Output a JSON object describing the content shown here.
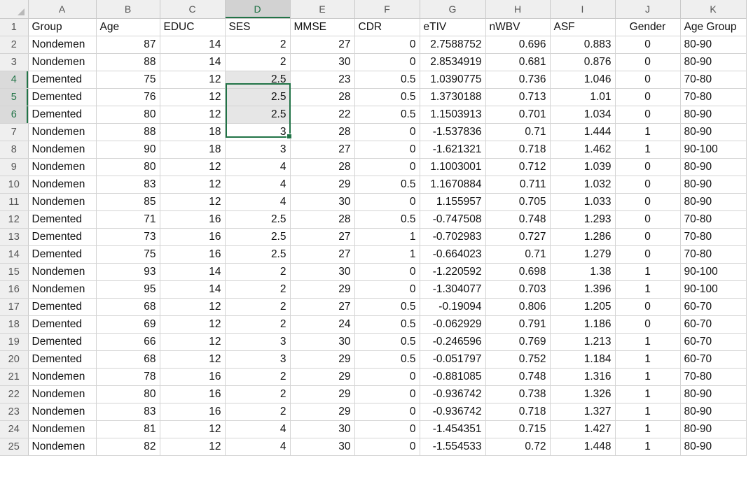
{
  "columns": [
    "A",
    "B",
    "C",
    "D",
    "E",
    "F",
    "G",
    "H",
    "I",
    "J",
    "K"
  ],
  "selected_column": "D",
  "selected_rows": [
    4,
    5,
    6
  ],
  "rows": [
    {
      "n": "1",
      "c": [
        "Group",
        "Age",
        "EDUC",
        "SES",
        "MMSE",
        "CDR",
        "eTIV",
        "nWBV",
        "ASF",
        "Gender",
        "Age Group"
      ]
    },
    {
      "n": "2",
      "c": [
        "Nondemen",
        "87",
        "14",
        "2",
        "27",
        "0",
        "2.7588752",
        "0.696",
        "0.883",
        "0",
        "80-90"
      ]
    },
    {
      "n": "3",
      "c": [
        "Nondemen",
        "88",
        "14",
        "2",
        "30",
        "0",
        "2.8534919",
        "0.681",
        "0.876",
        "0",
        "80-90"
      ]
    },
    {
      "n": "4",
      "c": [
        "Demented",
        "75",
        "12",
        "2.5",
        "23",
        "0.5",
        "1.0390775",
        "0.736",
        "1.046",
        "0",
        "70-80"
      ]
    },
    {
      "n": "5",
      "c": [
        "Demented",
        "76",
        "12",
        "2.5",
        "28",
        "0.5",
        "1.3730188",
        "0.713",
        "1.01",
        "0",
        "70-80"
      ]
    },
    {
      "n": "6",
      "c": [
        "Demented",
        "80",
        "12",
        "2.5",
        "22",
        "0.5",
        "1.1503913",
        "0.701",
        "1.034",
        "0",
        "80-90"
      ]
    },
    {
      "n": "7",
      "c": [
        "Nondemen",
        "88",
        "18",
        "3",
        "28",
        "0",
        "-1.537836",
        "0.71",
        "1.444",
        "1",
        "80-90"
      ]
    },
    {
      "n": "8",
      "c": [
        "Nondemen",
        "90",
        "18",
        "3",
        "27",
        "0",
        "-1.621321",
        "0.718",
        "1.462",
        "1",
        "90-100"
      ]
    },
    {
      "n": "9",
      "c": [
        "Nondemen",
        "80",
        "12",
        "4",
        "28",
        "0",
        "1.1003001",
        "0.712",
        "1.039",
        "0",
        "80-90"
      ]
    },
    {
      "n": "10",
      "c": [
        "Nondemen",
        "83",
        "12",
        "4",
        "29",
        "0.5",
        "1.1670884",
        "0.711",
        "1.032",
        "0",
        "80-90"
      ]
    },
    {
      "n": "11",
      "c": [
        "Nondemen",
        "85",
        "12",
        "4",
        "30",
        "0",
        "1.155957",
        "0.705",
        "1.033",
        "0",
        "80-90"
      ]
    },
    {
      "n": "12",
      "c": [
        "Demented",
        "71",
        "16",
        "2.5",
        "28",
        "0.5",
        "-0.747508",
        "0.748",
        "1.293",
        "0",
        "70-80"
      ]
    },
    {
      "n": "13",
      "c": [
        "Demented",
        "73",
        "16",
        "2.5",
        "27",
        "1",
        "-0.702983",
        "0.727",
        "1.286",
        "0",
        "70-80"
      ]
    },
    {
      "n": "14",
      "c": [
        "Demented",
        "75",
        "16",
        "2.5",
        "27",
        "1",
        "-0.664023",
        "0.71",
        "1.279",
        "0",
        "70-80"
      ]
    },
    {
      "n": "15",
      "c": [
        "Nondemen",
        "93",
        "14",
        "2",
        "30",
        "0",
        "-1.220592",
        "0.698",
        "1.38",
        "1",
        "90-100"
      ]
    },
    {
      "n": "16",
      "c": [
        "Nondemen",
        "95",
        "14",
        "2",
        "29",
        "0",
        "-1.304077",
        "0.703",
        "1.396",
        "1",
        "90-100"
      ]
    },
    {
      "n": "17",
      "c": [
        "Demented",
        "68",
        "12",
        "2",
        "27",
        "0.5",
        "-0.19094",
        "0.806",
        "1.205",
        "0",
        "60-70"
      ]
    },
    {
      "n": "18",
      "c": [
        "Demented",
        "69",
        "12",
        "2",
        "24",
        "0.5",
        "-0.062929",
        "0.791",
        "1.186",
        "0",
        "60-70"
      ]
    },
    {
      "n": "19",
      "c": [
        "Demented",
        "66",
        "12",
        "3",
        "30",
        "0.5",
        "-0.246596",
        "0.769",
        "1.213",
        "1",
        "60-70"
      ]
    },
    {
      "n": "20",
      "c": [
        "Demented",
        "68",
        "12",
        "3",
        "29",
        "0.5",
        "-0.051797",
        "0.752",
        "1.184",
        "1",
        "60-70"
      ]
    },
    {
      "n": "21",
      "c": [
        "Nondemen",
        "78",
        "16",
        "2",
        "29",
        "0",
        "-0.881085",
        "0.748",
        "1.316",
        "1",
        "70-80"
      ]
    },
    {
      "n": "22",
      "c": [
        "Nondemen",
        "80",
        "16",
        "2",
        "29",
        "0",
        "-0.936742",
        "0.738",
        "1.326",
        "1",
        "80-90"
      ]
    },
    {
      "n": "23",
      "c": [
        "Nondemen",
        "83",
        "16",
        "2",
        "29",
        "0",
        "-0.936742",
        "0.718",
        "1.327",
        "1",
        "80-90"
      ]
    },
    {
      "n": "24",
      "c": [
        "Nondemen",
        "81",
        "12",
        "4",
        "30",
        "0",
        "-1.454351",
        "0.715",
        "1.427",
        "1",
        "80-90"
      ]
    },
    {
      "n": "25",
      "c": [
        "Nondemen",
        "82",
        "12",
        "4",
        "30",
        "0",
        "-1.554533",
        "0.72",
        "1.448",
        "1",
        "80-90"
      ]
    }
  ],
  "colors": {
    "accent": "#217346",
    "header_bg": "#efefef",
    "selection_bg": "#e6e6e6"
  }
}
